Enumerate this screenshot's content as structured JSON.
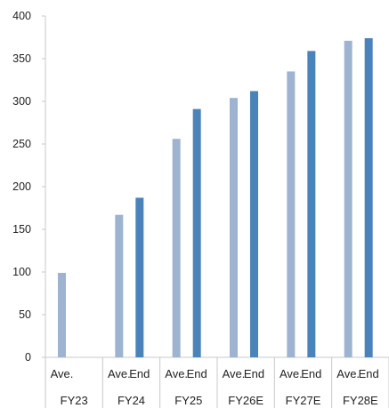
{
  "chart_data": {
    "type": "bar",
    "title": "",
    "xlabel": "",
    "ylabel": "",
    "ylim": [
      0,
      400
    ],
    "yticks": [
      0,
      50,
      100,
      150,
      200,
      250,
      300,
      350,
      400
    ],
    "grid": false,
    "legend": "none",
    "groups": [
      {
        "label": "FY23",
        "bars": [
          {
            "label": "Ave.",
            "series": "ave",
            "value": 99
          }
        ]
      },
      {
        "label": "FY24",
        "bars": [
          {
            "label": "Ave.",
            "series": "ave",
            "value": 167
          },
          {
            "label": "End",
            "series": "end",
            "value": 187
          }
        ]
      },
      {
        "label": "FY25",
        "bars": [
          {
            "label": "Ave.",
            "series": "ave",
            "value": 256
          },
          {
            "label": "End",
            "series": "end",
            "value": 291
          }
        ]
      },
      {
        "label": "FY26E",
        "bars": [
          {
            "label": "Ave.",
            "series": "ave",
            "value": 304
          },
          {
            "label": "End",
            "series": "end",
            "value": 312
          }
        ]
      },
      {
        "label": "FY27E",
        "bars": [
          {
            "label": "Ave.",
            "series": "ave",
            "value": 335
          },
          {
            "label": "End",
            "series": "end",
            "value": 359
          }
        ]
      },
      {
        "label": "FY28E",
        "bars": [
          {
            "label": "Ave.",
            "series": "ave",
            "value": 371
          },
          {
            "label": "End",
            "series": "end",
            "value": 374
          }
        ]
      }
    ],
    "colors": {
      "ave": "#9eb3d0",
      "end": "#4a82ba",
      "axis": "#c8c8c8",
      "text": "#222222"
    }
  }
}
